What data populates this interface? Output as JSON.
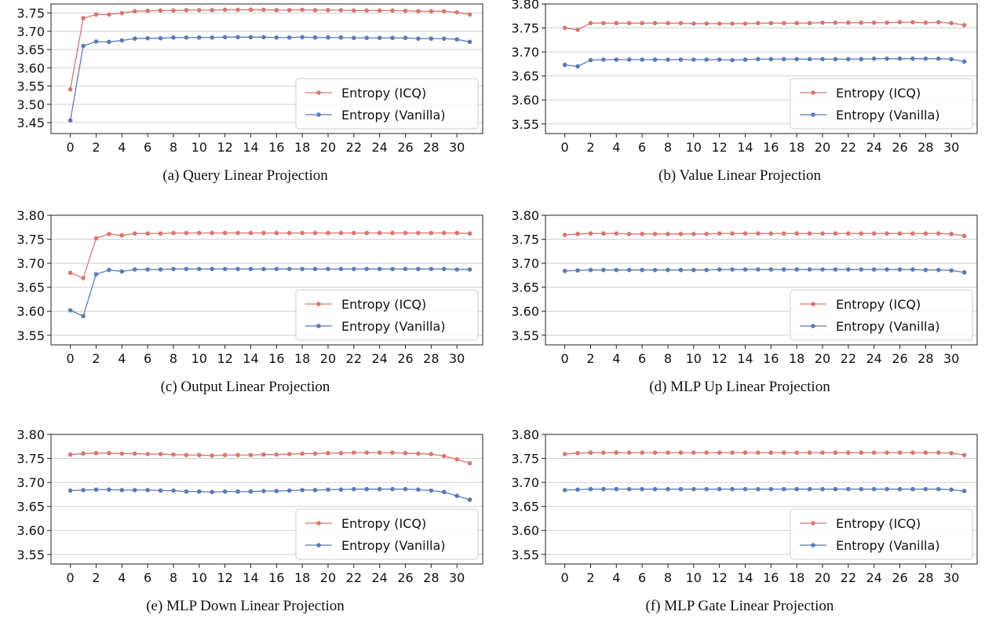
{
  "colors": {
    "icq": "#d97670",
    "vanilla": "#5b7bb5",
    "grid": "#d0d0d0",
    "axis": "#222222"
  },
  "chart_data": [
    {
      "type": "line",
      "caption": "(a) Query Linear Projection",
      "x": [
        0,
        1,
        2,
        3,
        4,
        5,
        6,
        7,
        8,
        9,
        10,
        11,
        12,
        13,
        14,
        15,
        16,
        17,
        18,
        19,
        20,
        21,
        22,
        23,
        24,
        25,
        26,
        27,
        28,
        29,
        30,
        31
      ],
      "xticks": [
        0,
        2,
        4,
        6,
        8,
        10,
        12,
        14,
        16,
        18,
        20,
        22,
        24,
        26,
        28,
        30
      ],
      "ylim": [
        3.42,
        3.775
      ],
      "yticks": [
        3.45,
        3.5,
        3.55,
        3.6,
        3.65,
        3.7,
        3.75
      ],
      "ytick_labels": [
        "3.45",
        "3.50",
        "3.55",
        "3.60",
        "3.65",
        "3.70",
        "3.75"
      ],
      "grid": true,
      "legend_position": "lower-right",
      "series": [
        {
          "name": "Entropy (ICQ)",
          "color_key": "icq",
          "values": [
            3.541,
            3.736,
            3.746,
            3.746,
            3.75,
            3.755,
            3.756,
            3.757,
            3.757,
            3.758,
            3.758,
            3.758,
            3.759,
            3.759,
            3.759,
            3.759,
            3.758,
            3.758,
            3.759,
            3.758,
            3.758,
            3.758,
            3.757,
            3.757,
            3.757,
            3.757,
            3.756,
            3.755,
            3.755,
            3.755,
            3.752,
            3.746
          ]
        },
        {
          "name": "Entropy (Vanilla)",
          "color_key": "vanilla",
          "values": [
            3.456,
            3.66,
            3.672,
            3.671,
            3.675,
            3.68,
            3.681,
            3.681,
            3.683,
            3.683,
            3.683,
            3.683,
            3.684,
            3.684,
            3.684,
            3.684,
            3.683,
            3.683,
            3.684,
            3.683,
            3.683,
            3.683,
            3.682,
            3.682,
            3.682,
            3.682,
            3.682,
            3.68,
            3.68,
            3.68,
            3.678,
            3.671
          ]
        }
      ]
    },
    {
      "type": "line",
      "caption": "(b) Value Linear Projection",
      "x": [
        0,
        1,
        2,
        3,
        4,
        5,
        6,
        7,
        8,
        9,
        10,
        11,
        12,
        13,
        14,
        15,
        16,
        17,
        18,
        19,
        20,
        21,
        22,
        23,
        24,
        25,
        26,
        27,
        28,
        29,
        30,
        31
      ],
      "xticks": [
        0,
        2,
        4,
        6,
        8,
        10,
        12,
        14,
        16,
        18,
        20,
        22,
        24,
        26,
        28,
        30
      ],
      "ylim": [
        3.53,
        3.8
      ],
      "yticks": [
        3.55,
        3.6,
        3.65,
        3.7,
        3.75,
        3.8
      ],
      "ytick_labels": [
        "3.55",
        "3.60",
        "3.65",
        "3.70",
        "3.75",
        "3.80"
      ],
      "grid": true,
      "legend_position": "lower-right",
      "series": [
        {
          "name": "Entropy (ICQ)",
          "color_key": "icq",
          "values": [
            3.75,
            3.746,
            3.76,
            3.76,
            3.76,
            3.76,
            3.76,
            3.76,
            3.76,
            3.76,
            3.759,
            3.759,
            3.759,
            3.759,
            3.759,
            3.76,
            3.76,
            3.76,
            3.76,
            3.76,
            3.761,
            3.761,
            3.761,
            3.761,
            3.761,
            3.761,
            3.762,
            3.762,
            3.761,
            3.762,
            3.76,
            3.756
          ]
        },
        {
          "name": "Entropy (Vanilla)",
          "color_key": "vanilla",
          "values": [
            3.673,
            3.67,
            3.683,
            3.684,
            3.684,
            3.684,
            3.684,
            3.684,
            3.684,
            3.684,
            3.684,
            3.684,
            3.684,
            3.683,
            3.684,
            3.685,
            3.685,
            3.685,
            3.685,
            3.685,
            3.685,
            3.685,
            3.685,
            3.685,
            3.686,
            3.686,
            3.686,
            3.686,
            3.686,
            3.686,
            3.685,
            3.68
          ]
        }
      ]
    },
    {
      "type": "line",
      "caption": "(c) Output Linear Projection",
      "x": [
        0,
        1,
        2,
        3,
        4,
        5,
        6,
        7,
        8,
        9,
        10,
        11,
        12,
        13,
        14,
        15,
        16,
        17,
        18,
        19,
        20,
        21,
        22,
        23,
        24,
        25,
        26,
        27,
        28,
        29,
        30,
        31
      ],
      "xticks": [
        0,
        2,
        4,
        6,
        8,
        10,
        12,
        14,
        16,
        18,
        20,
        22,
        24,
        26,
        28,
        30
      ],
      "ylim": [
        3.53,
        3.8
      ],
      "yticks": [
        3.55,
        3.6,
        3.65,
        3.7,
        3.75,
        3.8
      ],
      "ytick_labels": [
        "3.55",
        "3.60",
        "3.65",
        "3.70",
        "3.75",
        "3.80"
      ],
      "grid": true,
      "legend_position": "lower-right",
      "series": [
        {
          "name": "Entropy (ICQ)",
          "color_key": "icq",
          "values": [
            3.68,
            3.669,
            3.752,
            3.761,
            3.758,
            3.762,
            3.762,
            3.762,
            3.763,
            3.763,
            3.763,
            3.763,
            3.763,
            3.763,
            3.763,
            3.763,
            3.763,
            3.763,
            3.763,
            3.763,
            3.763,
            3.763,
            3.763,
            3.763,
            3.763,
            3.763,
            3.763,
            3.763,
            3.763,
            3.763,
            3.763,
            3.762
          ]
        },
        {
          "name": "Entropy (Vanilla)",
          "color_key": "vanilla",
          "values": [
            3.602,
            3.59,
            3.677,
            3.686,
            3.683,
            3.687,
            3.687,
            3.687,
            3.688,
            3.688,
            3.688,
            3.688,
            3.688,
            3.688,
            3.688,
            3.688,
            3.688,
            3.688,
            3.688,
            3.688,
            3.688,
            3.688,
            3.688,
            3.688,
            3.688,
            3.688,
            3.688,
            3.688,
            3.688,
            3.688,
            3.687,
            3.687
          ]
        }
      ]
    },
    {
      "type": "line",
      "caption": "(d) MLP Up Linear Projection",
      "x": [
        0,
        1,
        2,
        3,
        4,
        5,
        6,
        7,
        8,
        9,
        10,
        11,
        12,
        13,
        14,
        15,
        16,
        17,
        18,
        19,
        20,
        21,
        22,
        23,
        24,
        25,
        26,
        27,
        28,
        29,
        30,
        31
      ],
      "xticks": [
        0,
        2,
        4,
        6,
        8,
        10,
        12,
        14,
        16,
        18,
        20,
        22,
        24,
        26,
        28,
        30
      ],
      "ylim": [
        3.53,
        3.8
      ],
      "yticks": [
        3.55,
        3.6,
        3.65,
        3.7,
        3.75,
        3.8
      ],
      "ytick_labels": [
        "3.55",
        "3.60",
        "3.65",
        "3.70",
        "3.75",
        "3.80"
      ],
      "grid": true,
      "legend_position": "lower-right",
      "series": [
        {
          "name": "Entropy (ICQ)",
          "color_key": "icq",
          "values": [
            3.759,
            3.761,
            3.762,
            3.762,
            3.762,
            3.761,
            3.761,
            3.761,
            3.761,
            3.761,
            3.761,
            3.761,
            3.762,
            3.762,
            3.762,
            3.762,
            3.762,
            3.762,
            3.762,
            3.762,
            3.762,
            3.762,
            3.762,
            3.762,
            3.762,
            3.762,
            3.762,
            3.762,
            3.762,
            3.762,
            3.761,
            3.757
          ]
        },
        {
          "name": "Entropy (Vanilla)",
          "color_key": "vanilla",
          "values": [
            3.684,
            3.685,
            3.686,
            3.686,
            3.686,
            3.686,
            3.686,
            3.686,
            3.686,
            3.686,
            3.686,
            3.686,
            3.687,
            3.687,
            3.687,
            3.687,
            3.687,
            3.687,
            3.687,
            3.687,
            3.687,
            3.687,
            3.687,
            3.687,
            3.687,
            3.687,
            3.687,
            3.687,
            3.686,
            3.686,
            3.685,
            3.681
          ]
        }
      ]
    },
    {
      "type": "line",
      "caption": "(e) MLP Down Linear Projection",
      "x": [
        0,
        1,
        2,
        3,
        4,
        5,
        6,
        7,
        8,
        9,
        10,
        11,
        12,
        13,
        14,
        15,
        16,
        17,
        18,
        19,
        20,
        21,
        22,
        23,
        24,
        25,
        26,
        27,
        28,
        29,
        30,
        31
      ],
      "xticks": [
        0,
        2,
        4,
        6,
        8,
        10,
        12,
        14,
        16,
        18,
        20,
        22,
        24,
        26,
        28,
        30
      ],
      "ylim": [
        3.53,
        3.8
      ],
      "yticks": [
        3.55,
        3.6,
        3.65,
        3.7,
        3.75,
        3.8
      ],
      "ytick_labels": [
        "3.55",
        "3.60",
        "3.65",
        "3.70",
        "3.75",
        "3.80"
      ],
      "grid": true,
      "legend_position": "lower-right",
      "series": [
        {
          "name": "Entropy (ICQ)",
          "color_key": "icq",
          "values": [
            3.758,
            3.76,
            3.761,
            3.761,
            3.76,
            3.76,
            3.759,
            3.759,
            3.758,
            3.757,
            3.757,
            3.756,
            3.757,
            3.757,
            3.757,
            3.758,
            3.758,
            3.759,
            3.76,
            3.76,
            3.761,
            3.761,
            3.762,
            3.762,
            3.762,
            3.762,
            3.761,
            3.76,
            3.759,
            3.755,
            3.748,
            3.74
          ]
        },
        {
          "name": "Entropy (Vanilla)",
          "color_key": "vanilla",
          "values": [
            3.683,
            3.684,
            3.685,
            3.685,
            3.684,
            3.684,
            3.684,
            3.683,
            3.683,
            3.681,
            3.681,
            3.68,
            3.681,
            3.681,
            3.681,
            3.682,
            3.682,
            3.683,
            3.684,
            3.684,
            3.685,
            3.685,
            3.686,
            3.686,
            3.686,
            3.686,
            3.686,
            3.685,
            3.683,
            3.68,
            3.672,
            3.664
          ]
        }
      ]
    },
    {
      "type": "line",
      "caption": "(f) MLP Gate Linear Projection",
      "x": [
        0,
        1,
        2,
        3,
        4,
        5,
        6,
        7,
        8,
        9,
        10,
        11,
        12,
        13,
        14,
        15,
        16,
        17,
        18,
        19,
        20,
        21,
        22,
        23,
        24,
        25,
        26,
        27,
        28,
        29,
        30,
        31
      ],
      "xticks": [
        0,
        2,
        4,
        6,
        8,
        10,
        12,
        14,
        16,
        18,
        20,
        22,
        24,
        26,
        28,
        30
      ],
      "ylim": [
        3.53,
        3.8
      ],
      "yticks": [
        3.55,
        3.6,
        3.65,
        3.7,
        3.75,
        3.8
      ],
      "ytick_labels": [
        "3.55",
        "3.60",
        "3.65",
        "3.70",
        "3.75",
        "3.80"
      ],
      "grid": true,
      "legend_position": "lower-right",
      "series": [
        {
          "name": "Entropy (ICQ)",
          "color_key": "icq",
          "values": [
            3.759,
            3.761,
            3.762,
            3.762,
            3.762,
            3.762,
            3.762,
            3.762,
            3.762,
            3.762,
            3.762,
            3.762,
            3.762,
            3.762,
            3.762,
            3.762,
            3.762,
            3.762,
            3.762,
            3.762,
            3.762,
            3.762,
            3.762,
            3.762,
            3.762,
            3.762,
            3.762,
            3.762,
            3.762,
            3.762,
            3.761,
            3.757
          ]
        },
        {
          "name": "Entropy (Vanilla)",
          "color_key": "vanilla",
          "values": [
            3.684,
            3.685,
            3.686,
            3.686,
            3.686,
            3.686,
            3.686,
            3.686,
            3.686,
            3.686,
            3.686,
            3.686,
            3.686,
            3.686,
            3.686,
            3.686,
            3.686,
            3.686,
            3.686,
            3.686,
            3.686,
            3.686,
            3.686,
            3.686,
            3.686,
            3.686,
            3.686,
            3.686,
            3.686,
            3.686,
            3.685,
            3.682
          ]
        }
      ]
    }
  ]
}
